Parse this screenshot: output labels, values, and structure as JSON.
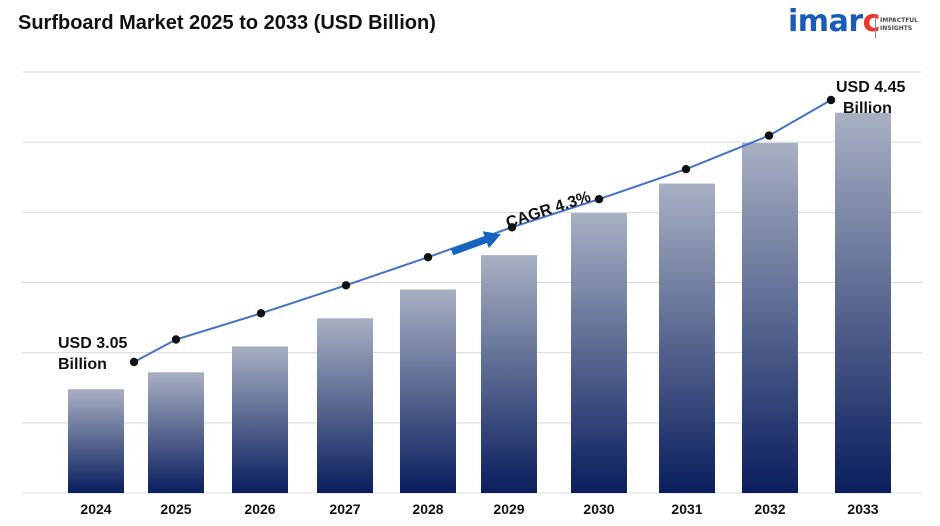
{
  "header": {
    "title": "Surfboard Market 2025 to 2033 (USD Billion)"
  },
  "logo": {
    "word": "imarc",
    "tagline_line1": "IMPACTFUL",
    "tagline_line2": "INSIGHTS",
    "color_main": "#1a5bb5",
    "color_accent": "#e8392a"
  },
  "chart_data": {
    "type": "bar",
    "categories": [
      "2024",
      "2025",
      "2026",
      "2027",
      "2028",
      "2029",
      "2030",
      "2031",
      "2032",
      "2033"
    ],
    "values": [
      1.48,
      1.72,
      2.09,
      2.49,
      2.9,
      3.39,
      3.99,
      4.41,
      4.99,
      5.42
    ],
    "ylim": [
      0,
      6
    ],
    "trend_line": {
      "values": [
        3.05,
        3.17,
        3.31,
        3.46,
        3.61,
        3.77,
        3.92,
        4.08,
        4.26,
        4.45
      ]
    },
    "annotations": {
      "start_label": "USD 3.05 Billion",
      "start_line1": "USD 3.05",
      "start_line2": "Billion",
      "end_label": "USD 4.45 Billion",
      "end_line1": "USD 4.45",
      "end_line2": "Billion",
      "cagr_label": "CAGR 4.3%"
    },
    "grid": true,
    "colors": {
      "bar_top": "#a8b0c3",
      "bar_bottom": "#0a1e5e",
      "line": "#4472c4",
      "marker": "#111111",
      "grid": "#d9d9d9",
      "arrow": "#1565c0"
    }
  }
}
